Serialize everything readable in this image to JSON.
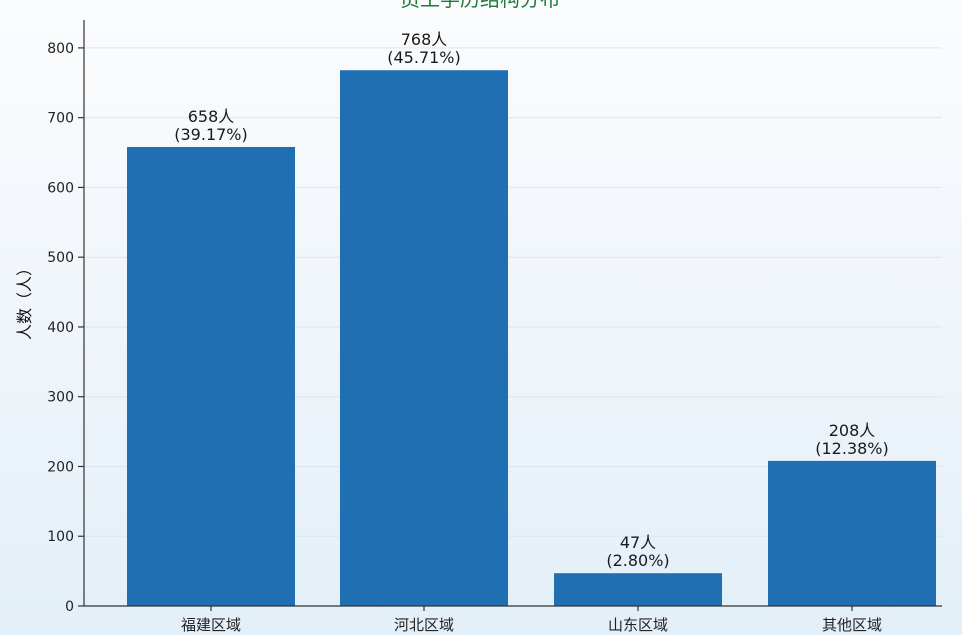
{
  "chart_data": {
    "type": "bar",
    "title": "员工学历结构分布",
    "ylabel": "人数（人）",
    "xlabel": "",
    "categories": [
      "福建区域",
      "河北区域",
      "山东区域",
      "其他区域"
    ],
    "values": [
      658,
      768,
      47,
      208
    ],
    "data_labels": [
      {
        "count": "658人",
        "percent": "(39.17%)"
      },
      {
        "count": "768人",
        "percent": "(45.71%)"
      },
      {
        "count": "47人",
        "percent": "(2.80%)"
      },
      {
        "count": "208人",
        "percent": "(12.38%)"
      }
    ],
    "ylim": [
      0,
      840
    ],
    "yticks": [
      0,
      100,
      200,
      300,
      400,
      500,
      600,
      700,
      800
    ],
    "grid": true,
    "bar_color": "#1f6fb2"
  }
}
